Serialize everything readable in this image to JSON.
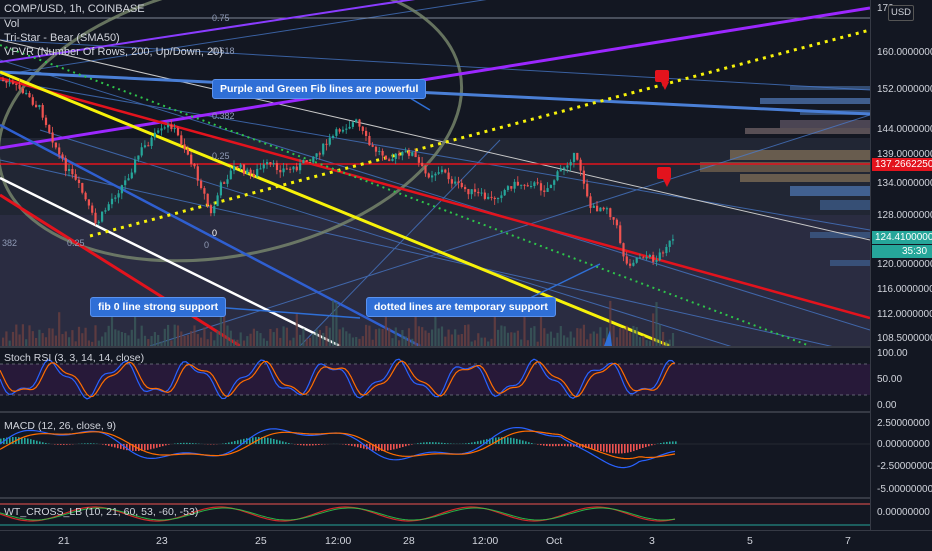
{
  "legend": {
    "symbol": "COMP/USD, 1h, COINBASE",
    "vol": "Vol",
    "tristar": "Tri-Star - Bear (SMA50)",
    "vpvr": "VPVR (Number Of Rows, 200, Up/Down, 20)"
  },
  "fib_labels": [
    "0.75",
    "0.618",
    "0.382",
    "0.25",
    "0.25",
    "0",
    "0",
    "382"
  ],
  "annotations": {
    "purple_green": "Purple and Green Fib lines are powerful",
    "fib0": "fib 0 line strong support",
    "dotted": "dotted lines are temporary support"
  },
  "price_axis": {
    "currency": "USD",
    "top_label": "170",
    "ticks": [
      "160.00000000",
      "152.00000000",
      "144.00000000",
      "139.00000000",
      "134.00000000",
      "128.00000000",
      "120.00000000",
      "116.00000000",
      "112.00000000",
      "108.50000000"
    ],
    "red_tag": "137.26622500",
    "current_price": "124.41000000",
    "countdown": "35:30"
  },
  "stoch": {
    "title": "Stoch RSI (3, 3, 14, 14, close)",
    "ticks": [
      "100.00",
      "50.00",
      "0.00"
    ]
  },
  "macd": {
    "title": "MACD (12, 26, close, 9)",
    "ticks": [
      "2.50000000",
      "0.00000000",
      "-2.50000000",
      "-5.00000000"
    ]
  },
  "wt": {
    "title": "WT_CROSS_LB (10, 21, 60, 53, -60, -53)",
    "ticks": [
      "0.00000000"
    ]
  },
  "time_axis": [
    "21",
    "23",
    "25",
    "12:00",
    "28",
    "12:00",
    "Oct",
    "3",
    "5",
    "7"
  ],
  "colors": {
    "background": "#131722",
    "fib_purple": "#9c27ff",
    "fib_blue": "#4a7fd6",
    "trend_red": "#e3131d",
    "trend_yellow": "#f7f20a",
    "dotted_green": "#2ec44a",
    "annotation_blue": "#2f6fd6",
    "up_candle": "#26a69a",
    "down_candle": "#ef5350"
  }
}
